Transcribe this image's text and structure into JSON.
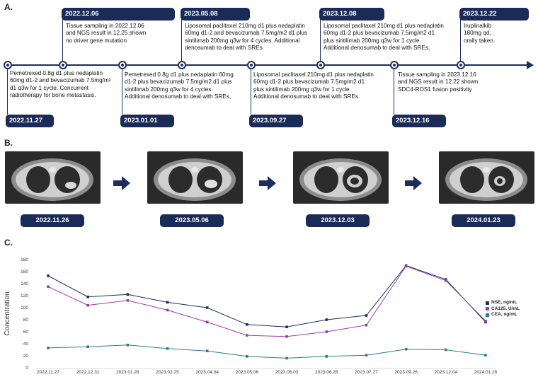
{
  "panels": {
    "a": "A.",
    "b": "B.",
    "c": "C."
  },
  "timeline": {
    "events": [
      {
        "date": "2022.11.27",
        "text": "Pemetrexed 0.8g d1 plus nedaplatin\n60mg d1-2 and bevacizumab 7.5mg/m²\nd1 q3w for 1 cycle. Concurrent\nradiotherapy for bone metastasis."
      },
      {
        "date": "2022.12.06",
        "text": "Tissue sampling in 2022.12.06\nand NGS result in 12.25 shown\nno driver gene mutation"
      },
      {
        "date": "2023.01.01",
        "text": "Pemetrexed 0.8g d1 plus nedaplatin 60mg\nd1-2 plus bevacizumab 7.5mg/m2 d1 plus\nsintilimab 200mg q3w for 4 cycles.\nAdditional denosumab to deal with SREs,"
      },
      {
        "date": "2023.05.08",
        "text": "Liposomal paclitaxel 210mg d1 plus nedaplatin\n60mg d1-2 and bevacizumab 7.5mg/m2 d1 plus\nsintilimab 200mg q3w for 4 cycles. Additional\ndenosumab to deal with SREs"
      },
      {
        "date": "2023.09.27",
        "text": "Liposomal paclitaxel 210mg d1 plus nedaplatin\n60mg d1-2 plus bevacizumab 7.5mg/m2 d1\nplus sintilimab 200mg q3w for 1 cycle.\nAdditional denosumab to deal with SREs."
      },
      {
        "date": "2023.12.08",
        "text": "Liposomal paclitaxel 210mg d1 plus nedaplatin\n60mg d1-2 plus bevacizumab 7.5mg/m2 d1\nplus sintilimab 200mg q3w for 1 cycle.\nAdditional denosumab to deal with SREs,"
      },
      {
        "date": "2023.12.16",
        "text": "Tissue sampling in 2023.12.16\nand NGS result in 12.22 shown\nSDC4-ROS1 fusion positivity"
      },
      {
        "date": "2023.12.22",
        "text": "Iruplinalkib\n180mg qd,\norally taken."
      }
    ]
  },
  "ct_scans": [
    "2022.11.26",
    "2023.05.06",
    "2023.12.03",
    "2024.01.23"
  ],
  "chart_data": {
    "type": "line",
    "title": "",
    "xlabel": "",
    "ylabel": "Concentration",
    "ylim": [
      0,
      180
    ],
    "yticks": [
      0,
      20,
      40,
      60,
      80,
      100,
      120,
      140,
      160,
      180
    ],
    "categories": [
      "2022.11.27",
      "2022.12.31",
      "2023.01.28",
      "2023.02.25",
      "2023.04.04",
      "2023.05.06",
      "2023.06.03",
      "2023.06.28",
      "2023.07.27",
      "2023.09.26",
      "2023.12.04",
      "2024.01.26"
    ],
    "series": [
      {
        "name": "NSE, ng/mL",
        "color": "#1c2e5e",
        "values": [
          153,
          118,
          122,
          109,
          100,
          72,
          68,
          80,
          87,
          170,
          147,
          76
        ]
      },
      {
        "name": "CA125, U/mL",
        "color": "#9b3fa3",
        "values": [
          135,
          104,
          112,
          96,
          76,
          54,
          52,
          60,
          71,
          169,
          145,
          78
        ]
      },
      {
        "name": "CEA, ng/mL",
        "color": "#2a7d8c",
        "values": [
          33,
          35,
          38,
          32,
          28,
          19,
          16,
          19,
          21,
          31,
          30,
          21
        ]
      }
    ],
    "legend_position": "right"
  }
}
